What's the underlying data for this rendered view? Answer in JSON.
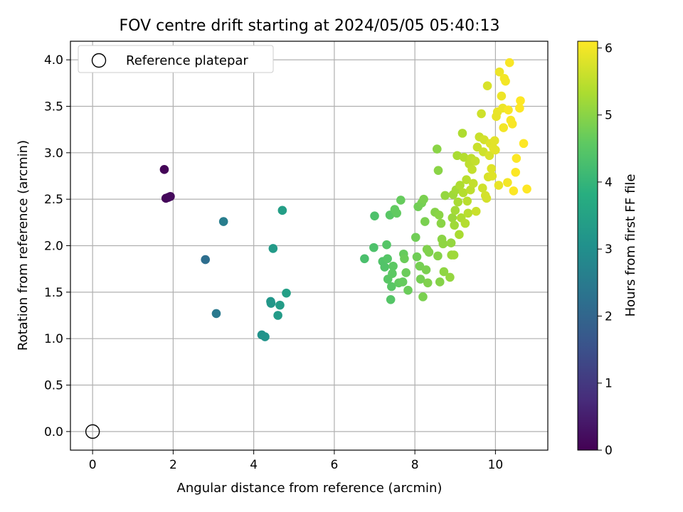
{
  "chart_data": {
    "type": "scatter",
    "title": "FOV centre drift starting at 2024/05/05 05:40:13",
    "xlabel": "Angular distance from reference (arcmin)",
    "ylabel": "Rotation from reference (arcmin)",
    "xlim": [
      -0.55,
      11.3
    ],
    "ylim": [
      -0.2,
      4.2
    ],
    "xticks": [
      "0",
      "2",
      "4",
      "6",
      "8",
      "10"
    ],
    "yticks": [
      "0.0",
      "0.5",
      "1.0",
      "1.5",
      "2.0",
      "2.5",
      "3.0",
      "3.5",
      "4.0"
    ],
    "grid": true,
    "legend": {
      "placement": "top-left",
      "entries": [
        "Reference platepar"
      ]
    },
    "reference_point": {
      "x": 0,
      "y": 0,
      "label": "Reference platepar"
    },
    "colorbar": {
      "label": "Hours from first FF file",
      "range": [
        0,
        6.1
      ],
      "ticks": [
        "0",
        "1",
        "2",
        "3",
        "4",
        "5",
        "6"
      ],
      "colormap": "viridis"
    },
    "points": [
      {
        "x": 1.78,
        "y": 2.82,
        "h": 0.05
      },
      {
        "x": 1.82,
        "y": 2.51,
        "h": 0.1
      },
      {
        "x": 1.88,
        "y": 2.52,
        "h": 0.12
      },
      {
        "x": 1.93,
        "y": 2.53,
        "h": 0.15
      },
      {
        "x": 2.8,
        "y": 1.85,
        "h": 2.2
      },
      {
        "x": 3.07,
        "y": 1.27,
        "h": 2.45
      },
      {
        "x": 3.25,
        "y": 2.26,
        "h": 2.55
      },
      {
        "x": 4.2,
        "y": 1.04,
        "h": 3.1
      },
      {
        "x": 4.28,
        "y": 1.02,
        "h": 3.12
      },
      {
        "x": 4.42,
        "y": 1.4,
        "h": 3.2
      },
      {
        "x": 4.43,
        "y": 1.38,
        "h": 3.22
      },
      {
        "x": 4.48,
        "y": 1.97,
        "h": 3.28
      },
      {
        "x": 4.6,
        "y": 1.25,
        "h": 3.3
      },
      {
        "x": 4.65,
        "y": 1.36,
        "h": 3.35
      },
      {
        "x": 4.71,
        "y": 2.38,
        "h": 3.4
      },
      {
        "x": 4.81,
        "y": 1.49,
        "h": 3.42
      },
      {
        "x": 6.75,
        "y": 1.86,
        "h": 4.3
      },
      {
        "x": 6.98,
        "y": 1.98,
        "h": 4.35
      },
      {
        "x": 7.0,
        "y": 2.32,
        "h": 4.35
      },
      {
        "x": 7.2,
        "y": 1.83,
        "h": 4.4
      },
      {
        "x": 7.25,
        "y": 1.77,
        "h": 4.4
      },
      {
        "x": 7.3,
        "y": 2.01,
        "h": 4.45
      },
      {
        "x": 7.32,
        "y": 1.86,
        "h": 4.45
      },
      {
        "x": 7.33,
        "y": 1.64,
        "h": 4.5
      },
      {
        "x": 7.38,
        "y": 2.33,
        "h": 4.5
      },
      {
        "x": 7.4,
        "y": 1.42,
        "h": 4.45
      },
      {
        "x": 7.42,
        "y": 1.56,
        "h": 4.5
      },
      {
        "x": 7.44,
        "y": 1.7,
        "h": 4.55
      },
      {
        "x": 7.46,
        "y": 1.78,
        "h": 4.55
      },
      {
        "x": 7.5,
        "y": 2.39,
        "h": 4.6
      },
      {
        "x": 7.55,
        "y": 2.35,
        "h": 4.6
      },
      {
        "x": 7.6,
        "y": 1.6,
        "h": 4.6
      },
      {
        "x": 7.65,
        "y": 2.49,
        "h": 4.65
      },
      {
        "x": 7.7,
        "y": 1.61,
        "h": 4.65
      },
      {
        "x": 7.72,
        "y": 1.91,
        "h": 4.65
      },
      {
        "x": 7.74,
        "y": 1.86,
        "h": 4.7
      },
      {
        "x": 7.78,
        "y": 1.71,
        "h": 4.7
      },
      {
        "x": 7.83,
        "y": 1.52,
        "h": 4.7
      },
      {
        "x": 8.02,
        "y": 2.09,
        "h": 4.75
      },
      {
        "x": 8.05,
        "y": 1.88,
        "h": 4.75
      },
      {
        "x": 8.08,
        "y": 2.42,
        "h": 4.75
      },
      {
        "x": 8.12,
        "y": 1.78,
        "h": 4.8
      },
      {
        "x": 8.14,
        "y": 1.64,
        "h": 4.8
      },
      {
        "x": 8.17,
        "y": 2.46,
        "h": 4.8
      },
      {
        "x": 8.2,
        "y": 1.45,
        "h": 4.85
      },
      {
        "x": 8.22,
        "y": 2.5,
        "h": 4.85
      },
      {
        "x": 8.25,
        "y": 2.26,
        "h": 4.85
      },
      {
        "x": 8.28,
        "y": 1.74,
        "h": 4.85
      },
      {
        "x": 8.3,
        "y": 1.96,
        "h": 4.9
      },
      {
        "x": 8.32,
        "y": 1.6,
        "h": 4.9
      },
      {
        "x": 8.35,
        "y": 1.93,
        "h": 4.9
      },
      {
        "x": 8.5,
        "y": 2.36,
        "h": 4.95
      },
      {
        "x": 8.55,
        "y": 3.04,
        "h": 5.0
      },
      {
        "x": 8.57,
        "y": 1.89,
        "h": 4.95
      },
      {
        "x": 8.58,
        "y": 2.81,
        "h": 5.0
      },
      {
        "x": 8.6,
        "y": 2.33,
        "h": 5.0
      },
      {
        "x": 8.62,
        "y": 1.61,
        "h": 4.95
      },
      {
        "x": 8.65,
        "y": 2.24,
        "h": 5.0
      },
      {
        "x": 8.67,
        "y": 2.07,
        "h": 5.0
      },
      {
        "x": 8.7,
        "y": 2.02,
        "h": 5.05
      },
      {
        "x": 8.72,
        "y": 1.72,
        "h": 5.05
      },
      {
        "x": 8.75,
        "y": 2.54,
        "h": 5.1
      },
      {
        "x": 8.87,
        "y": 1.66,
        "h": 5.1
      },
      {
        "x": 8.9,
        "y": 2.03,
        "h": 5.1
      },
      {
        "x": 8.91,
        "y": 1.9,
        "h": 5.15
      },
      {
        "x": 8.93,
        "y": 2.3,
        "h": 5.15
      },
      {
        "x": 8.95,
        "y": 2.55,
        "h": 5.2
      },
      {
        "x": 8.97,
        "y": 1.9,
        "h": 5.2
      },
      {
        "x": 8.98,
        "y": 2.22,
        "h": 5.2
      },
      {
        "x": 9.0,
        "y": 2.38,
        "h": 5.25
      },
      {
        "x": 9.02,
        "y": 2.6,
        "h": 5.25
      },
      {
        "x": 9.05,
        "y": 2.97,
        "h": 5.3
      },
      {
        "x": 9.07,
        "y": 2.47,
        "h": 5.3
      },
      {
        "x": 9.1,
        "y": 2.12,
        "h": 5.3
      },
      {
        "x": 9.12,
        "y": 2.65,
        "h": 5.35
      },
      {
        "x": 9.15,
        "y": 2.3,
        "h": 5.35
      },
      {
        "x": 9.18,
        "y": 3.21,
        "h": 5.35
      },
      {
        "x": 9.2,
        "y": 2.57,
        "h": 5.4
      },
      {
        "x": 9.22,
        "y": 2.95,
        "h": 5.4
      },
      {
        "x": 9.25,
        "y": 2.24,
        "h": 5.4
      },
      {
        "x": 9.28,
        "y": 2.71,
        "h": 5.45
      },
      {
        "x": 9.3,
        "y": 2.48,
        "h": 5.45
      },
      {
        "x": 9.32,
        "y": 2.35,
        "h": 5.45
      },
      {
        "x": 9.35,
        "y": 2.88,
        "h": 5.5
      },
      {
        "x": 9.38,
        "y": 2.6,
        "h": 5.5
      },
      {
        "x": 9.4,
        "y": 2.94,
        "h": 5.5
      },
      {
        "x": 9.42,
        "y": 2.82,
        "h": 5.55
      },
      {
        "x": 9.45,
        "y": 2.67,
        "h": 5.55
      },
      {
        "x": 9.5,
        "y": 2.91,
        "h": 5.55
      },
      {
        "x": 9.52,
        "y": 2.37,
        "h": 5.6
      },
      {
        "x": 9.55,
        "y": 3.06,
        "h": 5.6
      },
      {
        "x": 9.6,
        "y": 3.17,
        "h": 5.6
      },
      {
        "x": 9.65,
        "y": 3.42,
        "h": 5.65
      },
      {
        "x": 9.68,
        "y": 2.62,
        "h": 5.65
      },
      {
        "x": 9.7,
        "y": 3.01,
        "h": 5.65
      },
      {
        "x": 9.72,
        "y": 3.14,
        "h": 5.7
      },
      {
        "x": 9.75,
        "y": 2.54,
        "h": 5.7
      },
      {
        "x": 9.78,
        "y": 2.51,
        "h": 5.7
      },
      {
        "x": 9.8,
        "y": 3.72,
        "h": 5.75
      },
      {
        "x": 9.82,
        "y": 2.74,
        "h": 5.75
      },
      {
        "x": 9.85,
        "y": 2.97,
        "h": 5.75
      },
      {
        "x": 9.87,
        "y": 3.1,
        "h": 5.8
      },
      {
        "x": 9.9,
        "y": 2.83,
        "h": 5.8
      },
      {
        "x": 9.92,
        "y": 2.75,
        "h": 5.8
      },
      {
        "x": 9.95,
        "y": 3.05,
        "h": 5.85
      },
      {
        "x": 9.98,
        "y": 3.13,
        "h": 5.85
      },
      {
        "x": 10.0,
        "y": 3.03,
        "h": 5.85
      },
      {
        "x": 10.02,
        "y": 3.39,
        "h": 5.9
      },
      {
        "x": 10.05,
        "y": 3.44,
        "h": 5.9
      },
      {
        "x": 10.08,
        "y": 2.65,
        "h": 5.9
      },
      {
        "x": 10.1,
        "y": 3.87,
        "h": 5.95
      },
      {
        "x": 10.15,
        "y": 3.61,
        "h": 5.95
      },
      {
        "x": 10.18,
        "y": 3.48,
        "h": 5.95
      },
      {
        "x": 10.2,
        "y": 3.27,
        "h": 6.0
      },
      {
        "x": 10.22,
        "y": 3.8,
        "h": 6.0
      },
      {
        "x": 10.25,
        "y": 3.77,
        "h": 6.0
      },
      {
        "x": 10.3,
        "y": 2.68,
        "h": 6.0
      },
      {
        "x": 10.32,
        "y": 3.46,
        "h": 6.05
      },
      {
        "x": 10.35,
        "y": 3.97,
        "h": 6.05
      },
      {
        "x": 10.38,
        "y": 3.35,
        "h": 6.05
      },
      {
        "x": 10.42,
        "y": 3.31,
        "h": 6.05
      },
      {
        "x": 10.45,
        "y": 2.59,
        "h": 6.08
      },
      {
        "x": 10.5,
        "y": 2.79,
        "h": 6.08
      },
      {
        "x": 10.52,
        "y": 2.94,
        "h": 6.08
      },
      {
        "x": 10.6,
        "y": 3.48,
        "h": 6.1
      },
      {
        "x": 10.62,
        "y": 3.56,
        "h": 6.1
      },
      {
        "x": 10.7,
        "y": 3.1,
        "h": 6.1
      },
      {
        "x": 10.78,
        "y": 2.61,
        "h": 6.1
      }
    ]
  }
}
